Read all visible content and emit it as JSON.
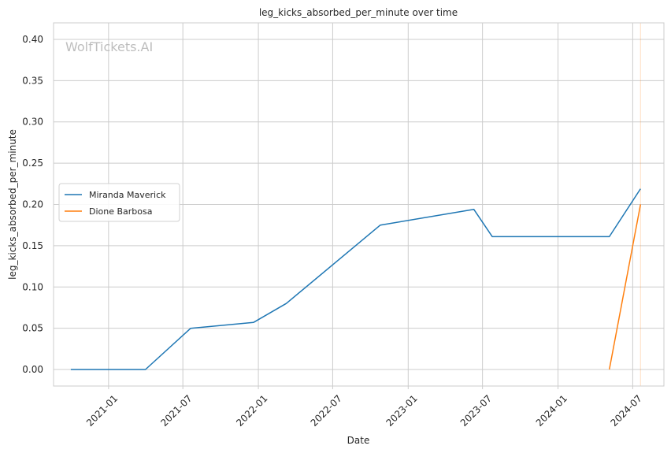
{
  "chart_data": {
    "type": "line",
    "title": "leg_kicks_absorbed_per_minute over time",
    "xlabel": "Date",
    "ylabel": "leg_kicks_absorbed_per_minute",
    "watermark": "WolfTickets.AI",
    "x_ticks": [
      "2021-01",
      "2021-07",
      "2022-01",
      "2022-07",
      "2023-01",
      "2023-07",
      "2024-01",
      "2024-07"
    ],
    "y_ticks": [
      "0.00",
      "0.05",
      "0.10",
      "0.15",
      "0.20",
      "0.25",
      "0.30",
      "0.35",
      "0.40"
    ],
    "xlim": [
      "2020-08-20",
      "2024-09-15"
    ],
    "ylim": [
      -0.02,
      0.42
    ],
    "grid": true,
    "legend_position": "center-left",
    "series": [
      {
        "name": "Miranda Maverick",
        "color": "#1f77b4",
        "points": [
          [
            "2020-10-01",
            0.0
          ],
          [
            "2021-04-01",
            0.0
          ],
          [
            "2021-07-20",
            0.05
          ],
          [
            "2021-12-20",
            0.057
          ],
          [
            "2022-03-10",
            0.08
          ],
          [
            "2022-10-25",
            0.175
          ],
          [
            "2023-06-10",
            0.194
          ],
          [
            "2023-07-25",
            0.161
          ],
          [
            "2024-05-05",
            0.161
          ],
          [
            "2024-07-20",
            0.219
          ]
        ]
      },
      {
        "name": "Dione Barbosa",
        "color": "#ff7f0e",
        "points": [
          [
            "2024-05-05",
            0.0
          ],
          [
            "2024-07-20",
            0.2
          ]
        ]
      }
    ],
    "reference_lines": [
      {
        "x": "2024-07-20",
        "color": "#ff7f0e",
        "opacity": 0.25
      }
    ]
  }
}
